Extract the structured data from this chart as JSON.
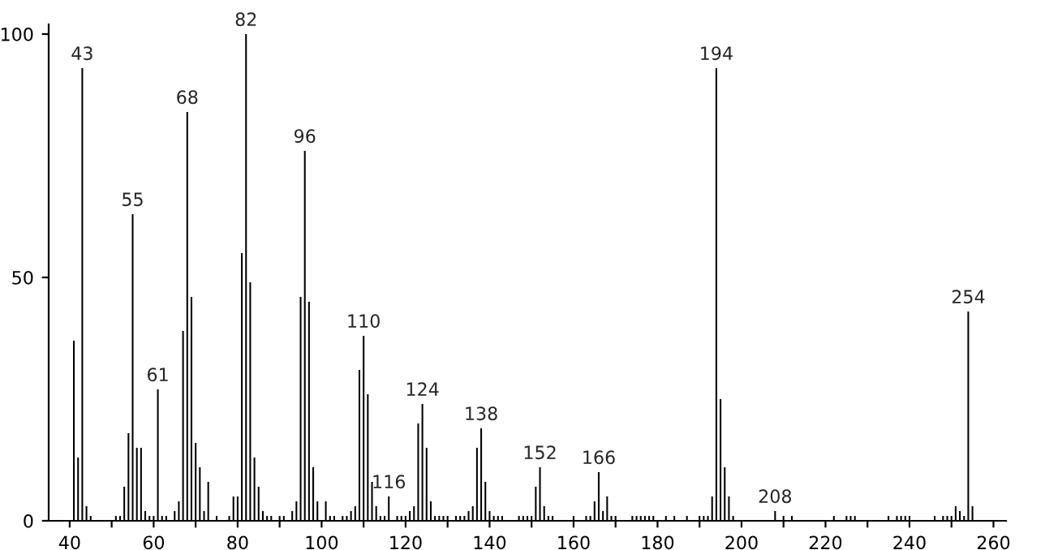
{
  "chart_data": {
    "type": "bar",
    "color": "#000000",
    "x": [
      41,
      42,
      43,
      44,
      45,
      51,
      52,
      53,
      54,
      55,
      56,
      57,
      58,
      59,
      60,
      61,
      62,
      63,
      65,
      66,
      67,
      68,
      69,
      70,
      71,
      72,
      73,
      75,
      78,
      79,
      80,
      81,
      82,
      83,
      84,
      85,
      86,
      87,
      88,
      90,
      91,
      93,
      94,
      95,
      96,
      97,
      98,
      99,
      101,
      102,
      103,
      105,
      106,
      107,
      108,
      109,
      110,
      111,
      112,
      113,
      114,
      115,
      116,
      118,
      119,
      120,
      121,
      122,
      123,
      124,
      125,
      126,
      127,
      128,
      129,
      130,
      132,
      133,
      134,
      135,
      136,
      137,
      138,
      139,
      140,
      141,
      142,
      143,
      147,
      148,
      149,
      150,
      151,
      152,
      153,
      154,
      155,
      160,
      163,
      164,
      165,
      166,
      167,
      168,
      169,
      170,
      174,
      175,
      176,
      177,
      178,
      179,
      182,
      184,
      187,
      190,
      191,
      192,
      193,
      194,
      195,
      196,
      197,
      198,
      208,
      210,
      212,
      222,
      225,
      226,
      227,
      235,
      237,
      238,
      239,
      240,
      246,
      248,
      249,
      250,
      251,
      252,
      253,
      254,
      255
    ],
    "values": [
      37,
      13,
      93,
      3,
      1,
      1,
      1,
      7,
      18,
      63,
      15,
      15,
      2,
      1,
      1,
      27,
      1,
      1,
      2,
      4,
      39,
      84,
      46,
      16,
      11,
      2,
      8,
      1,
      1,
      5,
      5,
      55,
      100,
      49,
      13,
      7,
      2,
      1,
      1,
      1,
      1,
      2,
      4,
      46,
      76,
      45,
      11,
      4,
      4,
      1,
      1,
      1,
      1,
      2,
      3,
      31,
      38,
      26,
      8,
      3,
      1,
      1,
      5,
      1,
      1,
      1,
      2,
      3,
      20,
      24,
      15,
      4,
      1,
      1,
      1,
      1,
      1,
      1,
      1,
      2,
      3,
      15,
      19,
      8,
      2,
      1,
      1,
      1,
      1,
      1,
      1,
      1,
      7,
      11,
      3,
      1,
      1,
      1,
      1,
      1,
      4,
      10,
      2,
      5,
      1,
      1,
      1,
      1,
      1,
      1,
      1,
      1,
      1,
      1,
      1,
      1,
      1,
      1,
      5,
      93,
      25,
      11,
      5,
      1,
      2,
      1,
      1,
      1,
      1,
      1,
      1,
      1,
      1,
      1,
      1,
      1,
      1,
      1,
      1,
      1,
      3,
      2,
      1,
      43,
      3
    ],
    "xlim": [
      35,
      263
    ],
    "ylim": [
      0,
      102
    ],
    "xticks": [
      40,
      {
        "value": 50,
        "label": null
      },
      60,
      {
        "value": 70,
        "label": null
      },
      80,
      {
        "value": 90,
        "label": null
      },
      100,
      {
        "value": 110,
        "label": null
      },
      120,
      {
        "value": 130,
        "label": null
      },
      140,
      {
        "value": 150,
        "label": null
      },
      160,
      {
        "value": 170,
        "label": null
      },
      180,
      {
        "value": 190,
        "label": null
      },
      200,
      {
        "value": 210,
        "label": null
      },
      220,
      {
        "value": 230,
        "label": null
      },
      240,
      {
        "value": 250,
        "label": null
      },
      260
    ],
    "yticks": [
      0,
      50,
      100
    ],
    "grid": false,
    "annotations": [
      {
        "text": "43",
        "x": 43,
        "y": 93
      },
      {
        "text": "55",
        "x": 55,
        "y": 63
      },
      {
        "text": "61",
        "x": 61,
        "y": 27
      },
      {
        "text": "68",
        "x": 68,
        "y": 84
      },
      {
        "text": "82",
        "x": 82,
        "y": 100
      },
      {
        "text": "96",
        "x": 96,
        "y": 76
      },
      {
        "text": "110",
        "x": 110,
        "y": 38
      },
      {
        "text": "116",
        "x": 116,
        "y": 5
      },
      {
        "text": "124",
        "x": 124,
        "y": 24
      },
      {
        "text": "138",
        "x": 138,
        "y": 19
      },
      {
        "text": "152",
        "x": 152,
        "y": 11
      },
      {
        "text": "166",
        "x": 166,
        "y": 10
      },
      {
        "text": "194",
        "x": 194,
        "y": 93
      },
      {
        "text": "208",
        "x": 208,
        "y": 2
      },
      {
        "text": "254",
        "x": 254,
        "y": 43
      }
    ]
  }
}
